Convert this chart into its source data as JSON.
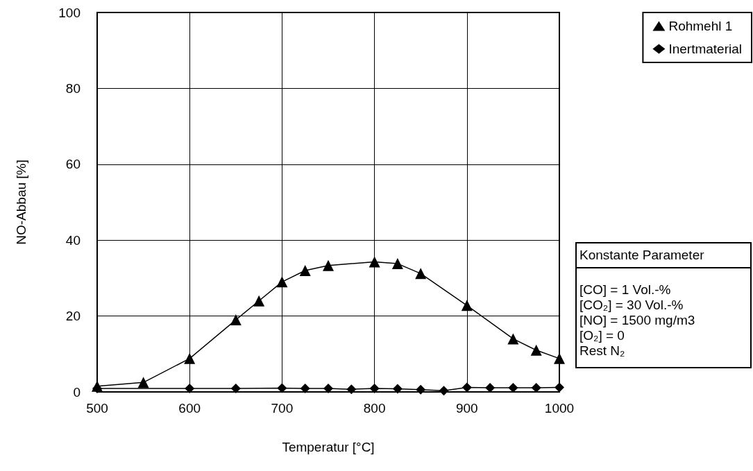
{
  "chart_data": {
    "type": "line",
    "xlabel": "Temperatur [°C]",
    "ylabel": "NO-Abbau [%]",
    "xlim": [
      500,
      1000
    ],
    "xticks": [
      500,
      600,
      700,
      800,
      900,
      1000
    ],
    "ylim": [
      0,
      100
    ],
    "yticks": [
      0,
      20,
      40,
      60,
      80,
      100
    ],
    "grid": true,
    "legend": "top right",
    "line_style": "solid",
    "series": [
      {
        "name": "Rohmehl 1",
        "color": "#000000",
        "marker": "triangle",
        "x": [
          500,
          550,
          600,
          650,
          675,
          700,
          725,
          750,
          800,
          825,
          850,
          900,
          950,
          975,
          1000
        ],
        "values": [
          1.5,
          2.5,
          8.8,
          19,
          24,
          29,
          32,
          33.3,
          34.3,
          33.8,
          31.2,
          22.8,
          14,
          11,
          8.8
        ]
      },
      {
        "name": "Inertmaterial",
        "color": "#000000",
        "marker": "diamond",
        "x": [
          500,
          600,
          650,
          700,
          725,
          750,
          775,
          800,
          825,
          850,
          875,
          900,
          925,
          950,
          975,
          1000
        ],
        "values": [
          0.9,
          0.9,
          0.9,
          1.0,
          0.9,
          0.9,
          0.7,
          0.9,
          0.8,
          0.6,
          0.3,
          1.2,
          1.1,
          1.1,
          1.1,
          1.2
        ]
      }
    ],
    "annotations": [
      "Konstante Parameter",
      "[CO] = 1 Vol.-%",
      "[CO₂] = 30 Vol.-%",
      "[NO] = 1500 mg/m3",
      "[O₂] = 0",
      "Rest N₂"
    ]
  }
}
